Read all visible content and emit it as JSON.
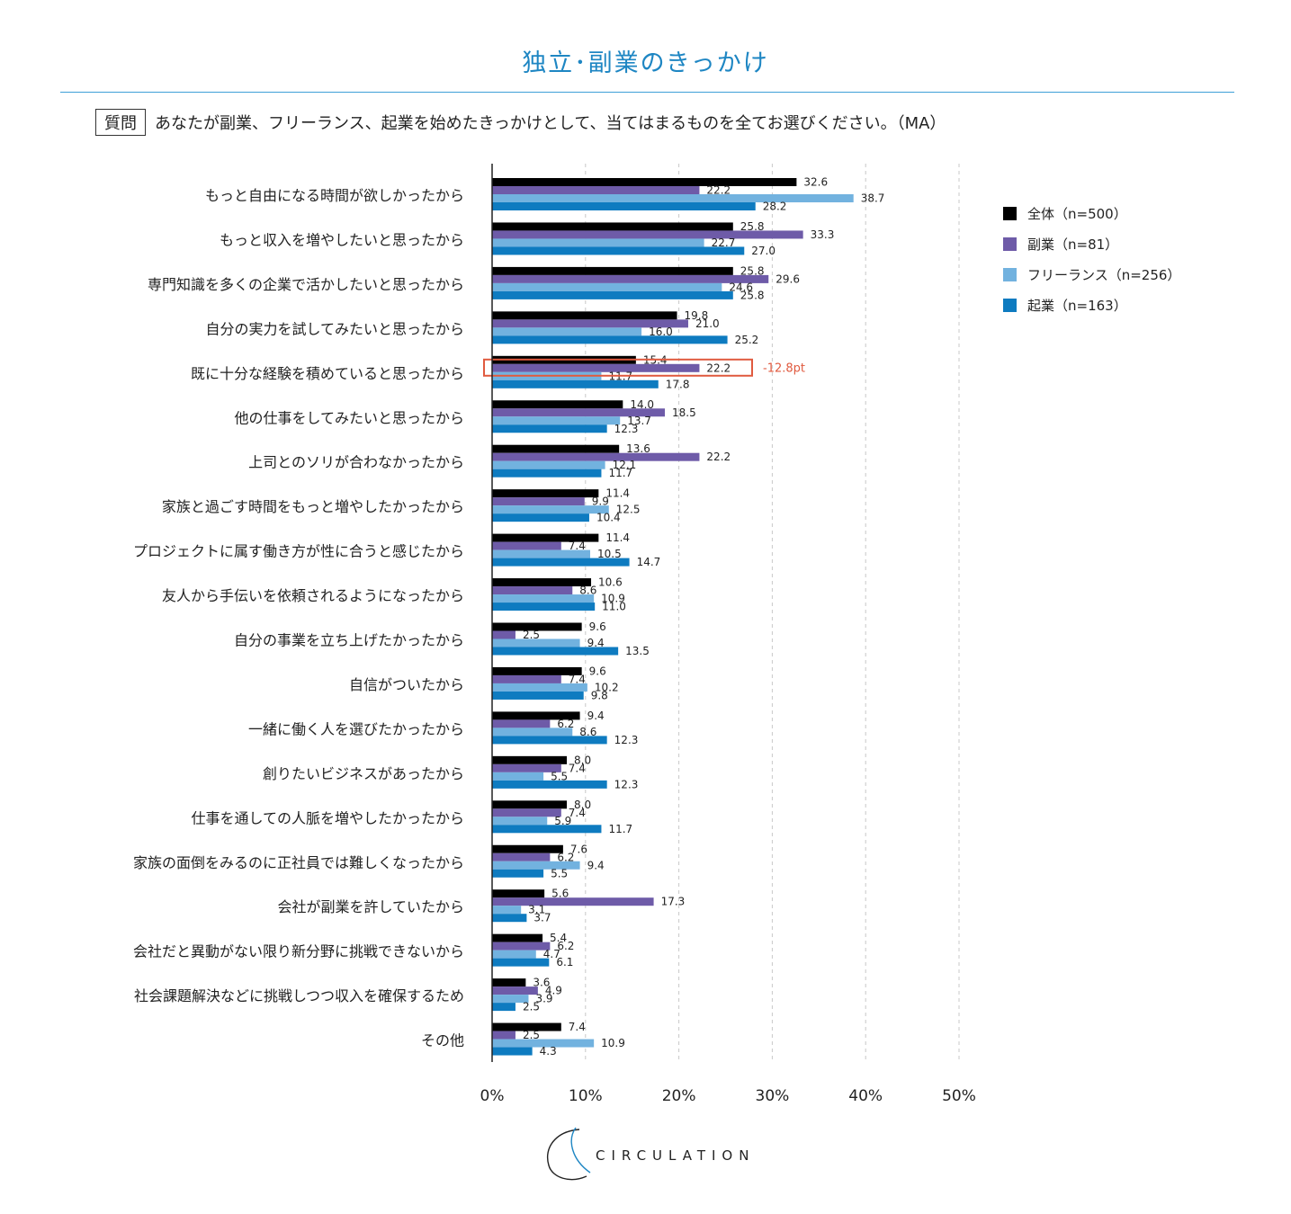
{
  "title": "独立･副業のきっかけ",
  "question": {
    "badge": "質問",
    "text": "あなたが副業、フリーランス、起業を始めたきっかけとして、当てはまるものを全てお選びください。（MA）"
  },
  "logo_text": "CIRCULATION",
  "chart_data": {
    "type": "bar",
    "orientation": "horizontal",
    "title": "独立･副業のきっかけ",
    "xlim": [
      0,
      50
    ],
    "x_ticks": [
      "0%",
      "10%",
      "20%",
      "30%",
      "40%",
      "50%"
    ],
    "grid": "vertical dashed",
    "legend_position": "top-right",
    "categories": [
      "もっと自由になる時間が欲しかったから",
      "もっと収入を増やしたいと思ったから",
      "専門知識を多くの企業で活かしたいと思ったから",
      "自分の実力を試してみたいと思ったから",
      "既に十分な経験を積めていると思ったから",
      "他の仕事をしてみたいと思ったから",
      "上司とのソリが合わなかったから",
      "家族と過ごす時間をもっと増やしたかったから",
      "プロジェクトに属す働き方が性に合うと感じたから",
      "友人から手伝いを依頼されるようになったから",
      "自分の事業を立ち上げたかったから",
      "自信がついたから",
      "一緒に働く人を選びたかったから",
      "創りたいビジネスがあったから",
      "仕事を通しての人脈を増やしたかったから",
      "家族の面倒をみるのに正社員では難しくなったから",
      "会社が副業を許していたから",
      "会社だと異動がない限り新分野に挑戦できないから",
      "社会課題解決などに挑戦しつつ収入を確保するため",
      "その他"
    ],
    "series": [
      {
        "name": "全体（n=500）",
        "color": "#000000",
        "values": [
          32.6,
          25.8,
          25.8,
          19.8,
          15.4,
          14.0,
          13.6,
          11.4,
          11.4,
          10.6,
          9.6,
          9.6,
          9.4,
          8.0,
          8.0,
          7.6,
          5.6,
          5.4,
          3.6,
          7.4
        ]
      },
      {
        "name": "副業（n=81）",
        "color": "#6e5ba8",
        "values": [
          22.2,
          33.3,
          29.6,
          21.0,
          22.2,
          18.5,
          22.2,
          9.9,
          7.4,
          8.6,
          2.5,
          7.4,
          6.2,
          7.4,
          7.4,
          6.2,
          17.3,
          6.2,
          4.9,
          2.5
        ]
      },
      {
        "name": "フリーランス（n=256）",
        "color": "#72b2df",
        "values": [
          38.7,
          22.7,
          24.6,
          16.0,
          11.7,
          13.7,
          12.1,
          12.5,
          10.5,
          10.9,
          9.4,
          10.2,
          8.6,
          5.5,
          5.9,
          9.4,
          3.1,
          4.7,
          3.9,
          10.9
        ]
      },
      {
        "name": "起業（n=163）",
        "color": "#0e7bc0",
        "values": [
          28.2,
          27.0,
          25.8,
          25.2,
          17.8,
          12.3,
          11.7,
          10.4,
          14.7,
          11.0,
          13.5,
          9.8,
          12.3,
          12.3,
          11.7,
          5.5,
          3.7,
          6.1,
          2.5,
          4.3
        ]
      }
    ],
    "value_labels": [
      [
        "32.6",
        "25.8",
        "25.8",
        "19.8",
        "15.4",
        "14.0",
        "13.6",
        "11.4",
        "11.4",
        "10.6",
        "9.6",
        "9.6",
        "9.4",
        "8.0",
        "8.0",
        "7.6",
        "5.6",
        "5.4",
        "3.6",
        "7.4"
      ],
      [
        "22.2",
        "33.3",
        "29.6",
        "21.0",
        "22.2",
        "18.5",
        "22.2",
        "9.9",
        "7.4",
        "8.6",
        "2.5",
        "7.4",
        "6.2",
        "7.4",
        "7.4",
        "6.2",
        "17.3",
        "6.2",
        "4.9",
        "2.5"
      ],
      [
        "38.7",
        "22.7",
        "24.6",
        "16.0",
        "11.7",
        "13.7",
        "12.1",
        "12.5",
        "10.5",
        "10.9",
        "9.4",
        "10.2",
        "8.6",
        "5.5",
        "5.9",
        "9.4",
        "3.1",
        "4.7",
        "3.9",
        "10.9"
      ],
      [
        "28.2",
        "27.0",
        "25.8",
        "25.2",
        "17.8",
        "12.3",
        "11.7",
        "10.4",
        "14.7",
        "11.0",
        "13.5",
        "9.8",
        "12.3",
        "12.3",
        "11.7",
        "5.5",
        "3.7",
        "6.1",
        "2.5",
        "4.3"
      ]
    ],
    "annotation": {
      "category_index": 4,
      "series_index": 1,
      "text": "-12.8pt",
      "color": "#e05a3f"
    }
  }
}
